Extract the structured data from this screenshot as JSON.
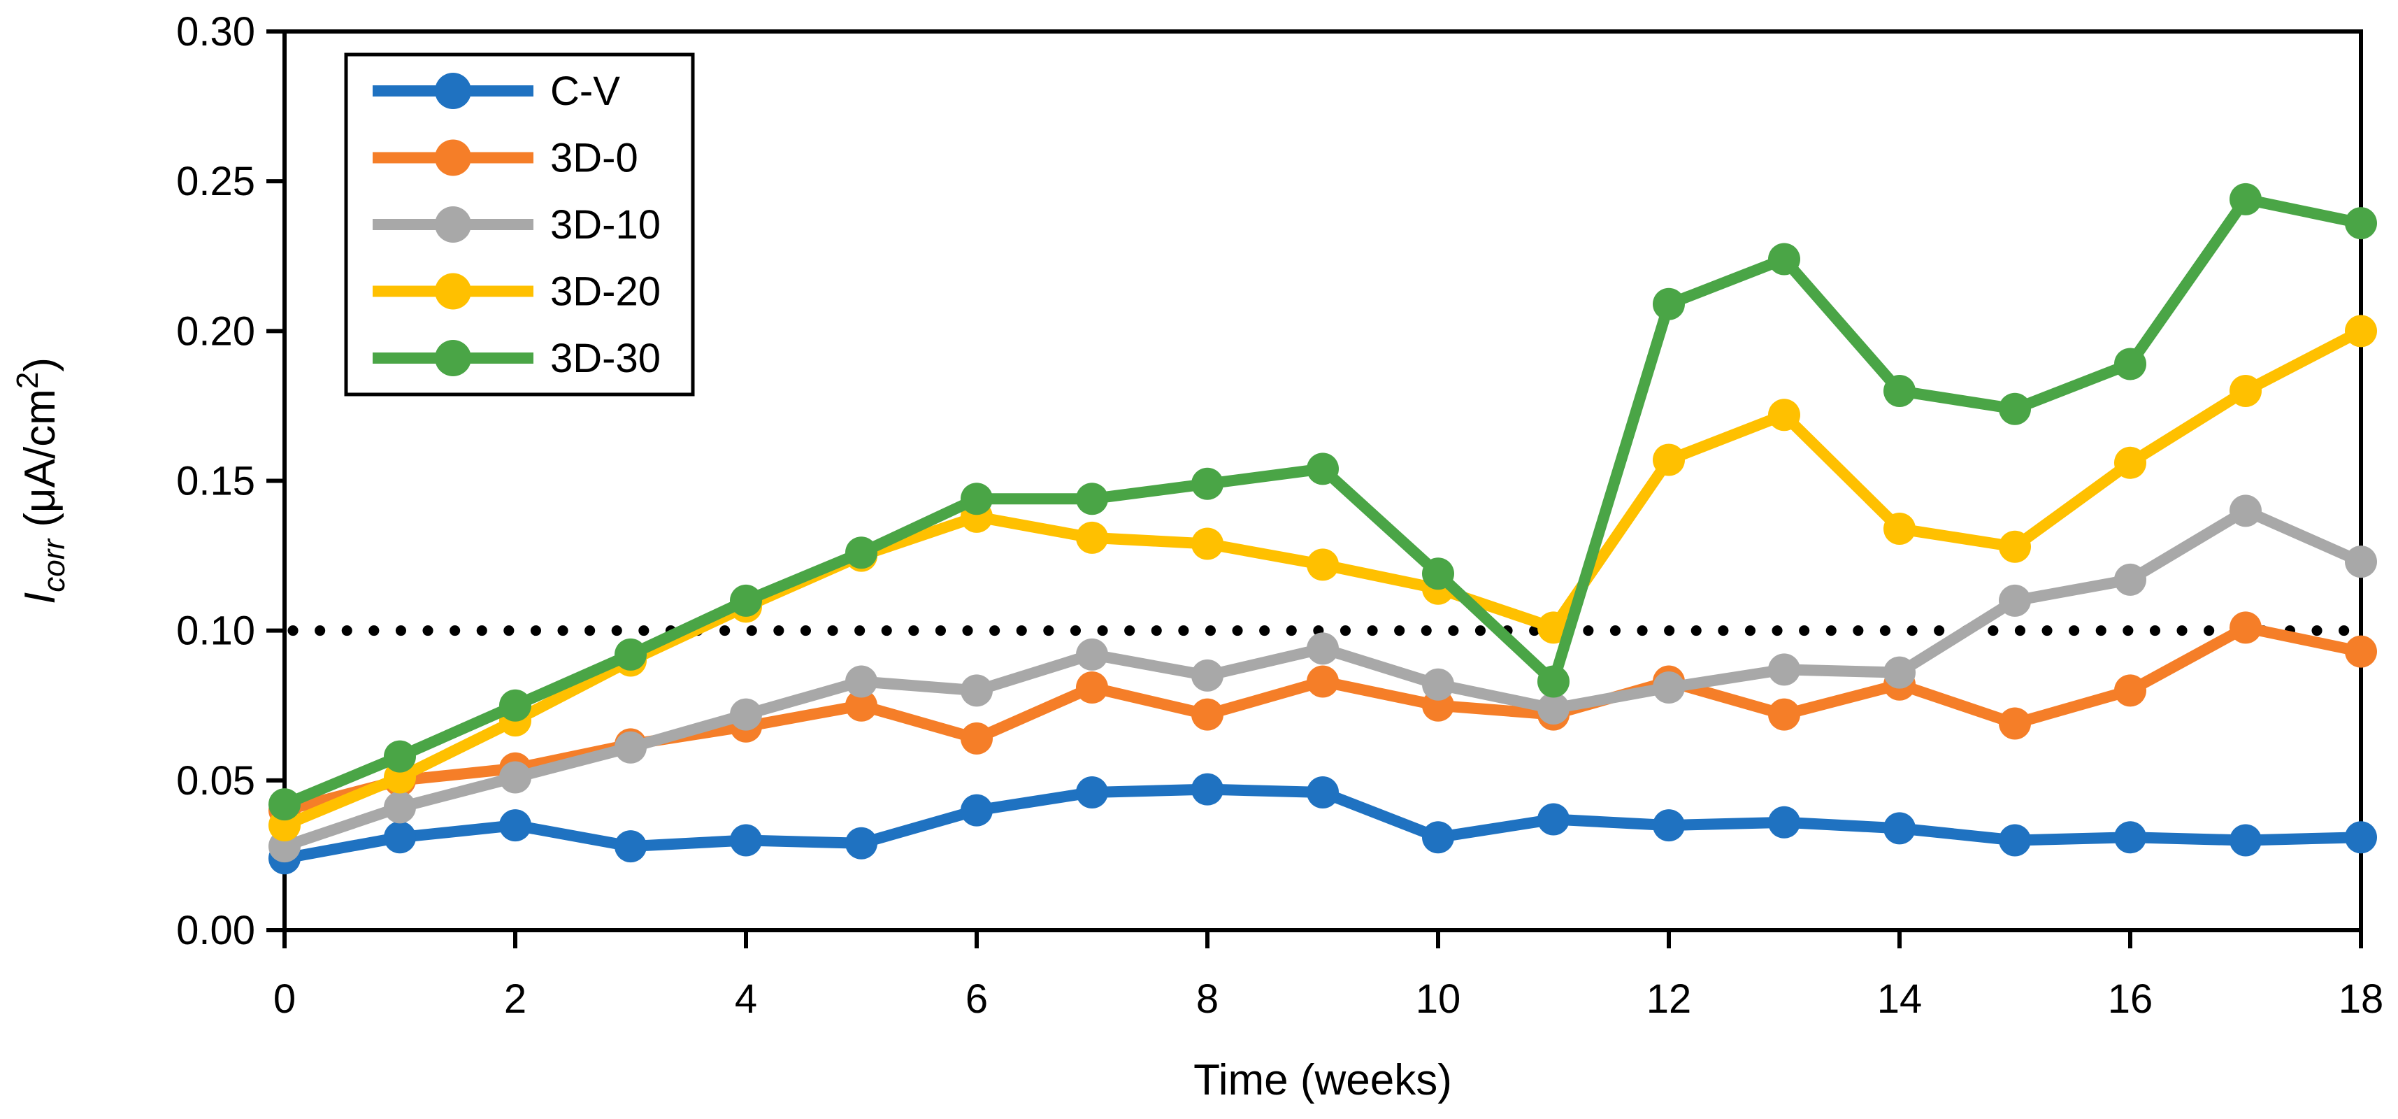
{
  "chart_data": {
    "type": "line",
    "title": "",
    "xlabel": "Time (weeks)",
    "ylabel": {
      "symbol": "I",
      "subscript": "corr",
      "unit_pre": " (μA/cm",
      "unit_sup": "2",
      "unit_post": ")"
    },
    "x": [
      0,
      1,
      2,
      3,
      4,
      5,
      6,
      7,
      8,
      9,
      10,
      11,
      12,
      13,
      14,
      15,
      16,
      17,
      18
    ],
    "x_tick_labels": [
      "0",
      "2",
      "4",
      "6",
      "8",
      "10",
      "12",
      "14",
      "16",
      "18"
    ],
    "x_tick_values": [
      0,
      2,
      4,
      6,
      8,
      10,
      12,
      14,
      16,
      18
    ],
    "xlim": [
      0,
      18
    ],
    "y_tick_labels": [
      "0.00",
      "0.05",
      "0.10",
      "0.15",
      "0.20",
      "0.25",
      "0.30"
    ],
    "y_tick_values": [
      0,
      0.05,
      0.1,
      0.15,
      0.2,
      0.25,
      0.3
    ],
    "ylim": [
      0,
      0.3
    ],
    "grid": false,
    "threshold": {
      "value": 0.1,
      "style": "dotted",
      "color": "#000000"
    },
    "legend": {
      "position": "top-left",
      "entries": [
        "C-V",
        "3D-0",
        "3D-10",
        "3D-20",
        "3D-30"
      ]
    },
    "frame_color": "#000000",
    "series": [
      {
        "name": "C-V",
        "color": "#1F72C1",
        "values": [
          0.024,
          0.031,
          0.035,
          0.028,
          0.03,
          0.029,
          0.04,
          0.046,
          0.047,
          0.046,
          0.031,
          0.037,
          0.035,
          0.036,
          0.034,
          0.03,
          0.031,
          0.03,
          0.031
        ]
      },
      {
        "name": "3D-0",
        "color": "#F57E28",
        "values": [
          0.04,
          0.05,
          0.054,
          0.062,
          0.068,
          0.075,
          0.064,
          0.081,
          0.072,
          0.083,
          0.075,
          0.072,
          0.083,
          0.072,
          0.082,
          0.069,
          0.08,
          0.101,
          0.093
        ]
      },
      {
        "name": "3D-10",
        "color": "#A8A8A8",
        "values": [
          0.028,
          0.041,
          0.051,
          0.061,
          0.072,
          0.083,
          0.08,
          0.092,
          0.085,
          0.094,
          0.082,
          0.074,
          0.081,
          0.087,
          0.086,
          0.11,
          0.117,
          0.14,
          0.123
        ]
      },
      {
        "name": "3D-20",
        "color": "#FFC000",
        "values": [
          0.035,
          0.051,
          0.07,
          0.09,
          0.108,
          0.125,
          0.138,
          0.131,
          0.129,
          0.122,
          0.114,
          0.101,
          0.157,
          0.172,
          0.134,
          0.128,
          0.156,
          0.18,
          0.2
        ]
      },
      {
        "name": "3D-30",
        "color": "#4AA546",
        "values": [
          0.042,
          0.058,
          0.075,
          0.092,
          0.11,
          0.126,
          0.144,
          0.144,
          0.149,
          0.154,
          0.119,
          0.083,
          0.209,
          0.224,
          0.18,
          0.174,
          0.189,
          0.244,
          0.236
        ]
      }
    ]
  }
}
